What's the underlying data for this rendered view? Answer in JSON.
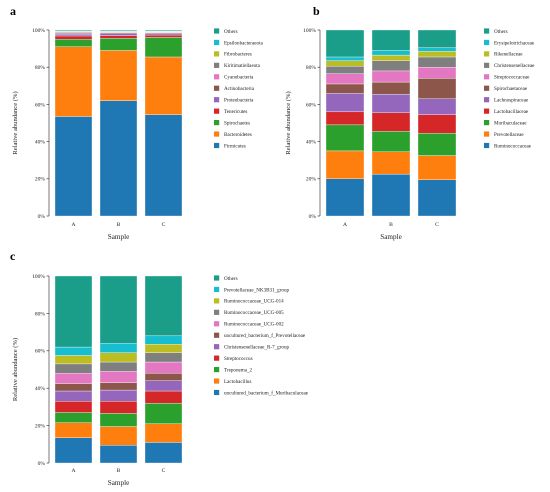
{
  "chart_data": [
    {
      "panel_label": "a",
      "type": "bar",
      "stacked": true,
      "categories": [
        "A",
        "B",
        "C"
      ],
      "xlabel": "Sample",
      "ylabel": "Relative abundance (%)",
      "ylim": [
        0,
        100
      ],
      "yticks": [
        0,
        20,
        40,
        60,
        80,
        100
      ],
      "ytick_labels": [
        "0%",
        "20%",
        "40%",
        "60%",
        "80%",
        "100%"
      ],
      "grid": false,
      "legend": "right",
      "series": [
        {
          "name": "Firmicutes",
          "color": "#1f77b4",
          "values": [
            53.5,
            62.0,
            54.5
          ]
        },
        {
          "name": "Bacteroidetes",
          "color": "#ff7f0e",
          "values": [
            37.5,
            27.0,
            31.0
          ]
        },
        {
          "name": "Spirochaetes",
          "color": "#2ca02c",
          "values": [
            4.0,
            6.5,
            10.5
          ]
        },
        {
          "name": "Tenericutes",
          "color": "#d62728",
          "values": [
            1.8,
            1.5,
            1.3
          ]
        },
        {
          "name": "Proteobacteria",
          "color": "#9467bd",
          "values": [
            1.0,
            1.0,
            0.8
          ]
        },
        {
          "name": "Actinobacteria",
          "color": "#8c564b",
          "values": [
            0.5,
            0.5,
            0.4
          ]
        },
        {
          "name": "Cyanobacteria",
          "color": "#e377c2",
          "values": [
            0.4,
            0.4,
            0.3
          ]
        },
        {
          "name": "Kiritimatiellaeota",
          "color": "#7f7f7f",
          "values": [
            0.3,
            0.3,
            0.3
          ]
        },
        {
          "name": "Fibrobacteres",
          "color": "#bcbd22",
          "values": [
            0.3,
            0.2,
            0.2
          ]
        },
        {
          "name": "Epsilonbacteraeota",
          "color": "#17becf",
          "values": [
            0.2,
            0.1,
            0.2
          ]
        },
        {
          "name": "Others",
          "color": "#1a9e8a",
          "values": [
            0.5,
            0.5,
            0.5
          ]
        }
      ]
    },
    {
      "panel_label": "b",
      "type": "bar",
      "stacked": true,
      "categories": [
        "A",
        "B",
        "C"
      ],
      "xlabel": "Sample",
      "ylabel": "Relative abundance (%)",
      "ylim": [
        0,
        100
      ],
      "yticks": [
        0,
        20,
        40,
        60,
        80,
        100
      ],
      "ytick_labels": [
        "0%",
        "20%",
        "40%",
        "60%",
        "80%",
        "100%"
      ],
      "grid": false,
      "legend": "right",
      "series": [
        {
          "name": "Ruminococcaceae",
          "color": "#1f77b4",
          "values": [
            20.0,
            22.5,
            19.5
          ]
        },
        {
          "name": "Prevotellaceae",
          "color": "#ff7f0e",
          "values": [
            15.0,
            12.0,
            13.0
          ]
        },
        {
          "name": "Muribaculaceae",
          "color": "#2ca02c",
          "values": [
            14.0,
            11.0,
            12.0
          ]
        },
        {
          "name": "Lactobacillaceae",
          "color": "#d62728",
          "values": [
            7.0,
            10.0,
            10.0
          ]
        },
        {
          "name": "Lachnospiraceae",
          "color": "#9467bd",
          "values": [
            10.0,
            10.0,
            8.5
          ]
        },
        {
          "name": "Spirochaetaceae",
          "color": "#8c564b",
          "values": [
            5.0,
            6.5,
            11.0
          ]
        },
        {
          "name": "Streptococcaceae",
          "color": "#e377c2",
          "values": [
            5.5,
            6.0,
            6.0
          ]
        },
        {
          "name": "Christensenellaceae",
          "color": "#7f7f7f",
          "values": [
            4.0,
            5.5,
            5.5
          ]
        },
        {
          "name": "Rikenellaceae",
          "color": "#bcbd22",
          "values": [
            3.0,
            3.0,
            3.0
          ]
        },
        {
          "name": "Erysipelotrichaceae",
          "color": "#17becf",
          "values": [
            2.0,
            2.5,
            2.0
          ]
        },
        {
          "name": "Others",
          "color": "#1a9e8a",
          "values": [
            14.5,
            11.0,
            9.5
          ]
        }
      ]
    },
    {
      "panel_label": "c",
      "type": "bar",
      "stacked": true,
      "categories": [
        "A",
        "B",
        "C"
      ],
      "xlabel": "Sample",
      "ylabel": "Relative abundance (%)",
      "ylim": [
        0,
        100
      ],
      "yticks": [
        0,
        20,
        40,
        60,
        80,
        100
      ],
      "ytick_labels": [
        "0%",
        "20%",
        "40%",
        "60%",
        "80%",
        "100%"
      ],
      "grid": false,
      "legend": "right",
      "series": [
        {
          "name": "uncultured_bacterium_f_Muribaculaceae",
          "color": "#1f77b4",
          "values": [
            13.5,
            9.5,
            11.0
          ]
        },
        {
          "name": "Lactobacillus",
          "color": "#ff7f0e",
          "values": [
            8.0,
            10.0,
            10.0
          ]
        },
        {
          "name": "Treponema_2",
          "color": "#2ca02c",
          "values": [
            5.5,
            7.0,
            11.0
          ]
        },
        {
          "name": "Streptococcus",
          "color": "#d62728",
          "values": [
            6.0,
            6.5,
            6.5
          ]
        },
        {
          "name": "Christensenellaceae_R-7_group",
          "color": "#9467bd",
          "values": [
            5.5,
            6.0,
            5.5
          ]
        },
        {
          "name": "uncultured_bacterium_f_Prevotellaceae",
          "color": "#8c564b",
          "values": [
            4.0,
            4.0,
            4.0
          ]
        },
        {
          "name": "Ruminococcaceae_UCG-002",
          "color": "#e377c2",
          "values": [
            5.5,
            6.0,
            6.0
          ]
        },
        {
          "name": "Ruminococcaceae_UCG-005",
          "color": "#7f7f7f",
          "values": [
            5.0,
            5.0,
            5.0
          ]
        },
        {
          "name": "Ruminococcaceae_UCG-014",
          "color": "#bcbd22",
          "values": [
            4.5,
            5.0,
            4.5
          ]
        },
        {
          "name": "Prevotellaceae_NK3B31_group",
          "color": "#17becf",
          "values": [
            4.5,
            5.0,
            4.5
          ]
        },
        {
          "name": "Others",
          "color": "#1a9e8a",
          "values": [
            38.0,
            36.0,
            32.0
          ]
        }
      ]
    }
  ]
}
